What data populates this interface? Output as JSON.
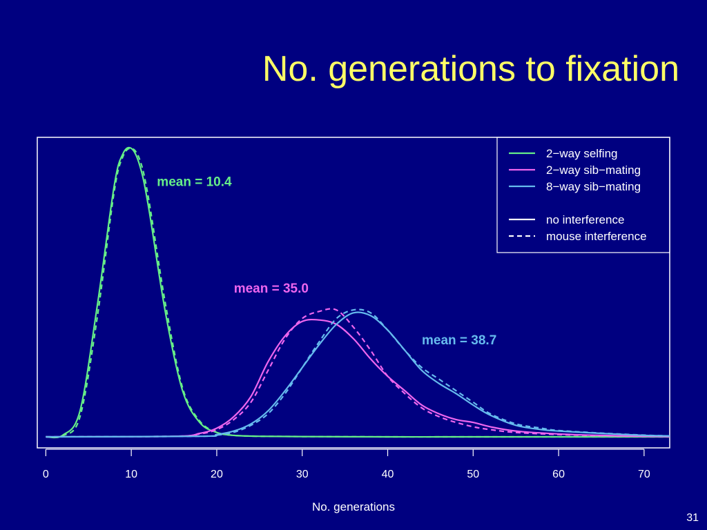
{
  "slide": {
    "title": "No. generations to fixation",
    "page_number": "31",
    "background": "#000080",
    "title_color": "#FFFF66"
  },
  "chart_data": {
    "type": "line",
    "title": "",
    "xlabel": "No. generations",
    "ylabel": "",
    "xlim": [
      -1,
      73
    ],
    "ylim": [
      0,
      1
    ],
    "x_ticks": [
      0,
      10,
      20,
      30,
      40,
      50,
      60,
      70
    ],
    "grid": false,
    "legend_position": "top-right",
    "legend": {
      "colors": [
        {
          "label": "2−way selfing",
          "color": "#66EE88"
        },
        {
          "label": "2−way sib−mating",
          "color": "#EE66EE"
        },
        {
          "label": "8−way sib−mating",
          "color": "#66BBEE"
        }
      ],
      "styles": [
        {
          "label": "no interference",
          "dash": "solid"
        },
        {
          "label": "mouse interference",
          "dash": "dashed"
        }
      ]
    },
    "series": [
      {
        "name": "2−way selfing",
        "style": "no interference",
        "color": "#66EE88",
        "dash": "solid",
        "x": [
          0,
          2,
          4,
          6,
          8,
          9,
          10,
          11,
          12,
          14,
          16,
          18,
          20,
          22,
          25,
          30,
          40,
          50,
          60,
          70,
          73
        ],
        "y": [
          0,
          0.006,
          0.09,
          0.45,
          0.87,
          0.98,
          1.0,
          0.94,
          0.8,
          0.43,
          0.16,
          0.05,
          0.015,
          0.005,
          0.002,
          0.001,
          0,
          0,
          0,
          0,
          0
        ]
      },
      {
        "name": "2−way selfing",
        "style": "mouse interference",
        "color": "#66EE88",
        "dash": "dashed",
        "x": [
          0,
          2,
          4,
          6,
          8,
          9,
          10,
          11,
          12,
          14,
          16,
          18,
          20,
          22,
          25,
          30,
          40,
          50,
          60,
          70,
          73
        ],
        "y": [
          0,
          0.004,
          0.07,
          0.41,
          0.85,
          0.97,
          1.0,
          0.96,
          0.83,
          0.46,
          0.17,
          0.055,
          0.016,
          0.005,
          0.002,
          0.001,
          0,
          0,
          0,
          0,
          0
        ]
      },
      {
        "name": "2−way sib−mating",
        "style": "no interference",
        "color": "#EE66EE",
        "dash": "solid",
        "x": [
          0,
          15,
          18,
          20,
          22,
          24,
          26,
          28,
          30,
          32,
          34,
          36,
          38,
          40,
          42,
          44,
          46,
          48,
          50,
          52,
          55,
          60,
          65,
          70,
          73
        ],
        "y": [
          0,
          0.002,
          0.012,
          0.03,
          0.07,
          0.14,
          0.26,
          0.35,
          0.4,
          0.405,
          0.39,
          0.34,
          0.27,
          0.21,
          0.16,
          0.11,
          0.08,
          0.06,
          0.05,
          0.035,
          0.02,
          0.01,
          0.005,
          0.002,
          0.001
        ]
      },
      {
        "name": "2−way sib−mating",
        "style": "mouse interference",
        "color": "#EE66EE",
        "dash": "dashed",
        "x": [
          0,
          15,
          18,
          20,
          22,
          24,
          26,
          28,
          30,
          32,
          34,
          36,
          38,
          40,
          42,
          44,
          46,
          48,
          50,
          52,
          55,
          60,
          65,
          70,
          73
        ],
        "y": [
          0,
          0.002,
          0.01,
          0.025,
          0.06,
          0.12,
          0.23,
          0.34,
          0.41,
          0.435,
          0.44,
          0.38,
          0.3,
          0.21,
          0.15,
          0.1,
          0.07,
          0.05,
          0.035,
          0.025,
          0.015,
          0.008,
          0.004,
          0.002,
          0.001
        ]
      },
      {
        "name": "8−way sib−mating",
        "style": "no interference",
        "color": "#66BBEE",
        "dash": "solid",
        "x": [
          0,
          18,
          20,
          22,
          24,
          26,
          28,
          30,
          32,
          34,
          36,
          38,
          40,
          42,
          44,
          46,
          48,
          50,
          52,
          55,
          58,
          60,
          65,
          70,
          73
        ],
        "y": [
          0,
          0.002,
          0.008,
          0.02,
          0.045,
          0.09,
          0.16,
          0.24,
          0.32,
          0.39,
          0.43,
          0.42,
          0.37,
          0.3,
          0.23,
          0.185,
          0.15,
          0.11,
          0.075,
          0.04,
          0.025,
          0.02,
          0.012,
          0.005,
          0.003
        ]
      },
      {
        "name": "8−way sib−mating",
        "style": "mouse interference",
        "color": "#66BBEE",
        "dash": "dashed",
        "x": [
          0,
          18,
          20,
          22,
          24,
          26,
          28,
          30,
          32,
          34,
          36,
          38,
          40,
          42,
          44,
          46,
          48,
          50,
          52,
          55,
          58,
          60,
          65,
          70,
          73
        ],
        "y": [
          0,
          0.002,
          0.006,
          0.016,
          0.04,
          0.08,
          0.15,
          0.24,
          0.33,
          0.41,
          0.44,
          0.43,
          0.37,
          0.3,
          0.24,
          0.2,
          0.16,
          0.12,
          0.08,
          0.045,
          0.03,
          0.022,
          0.013,
          0.006,
          0.003
        ]
      }
    ],
    "annotations": [
      {
        "text": "mean = 10.4",
        "color": "#66EE88",
        "x": 13,
        "y": 0.87
      },
      {
        "text": "mean = 35.0",
        "color": "#EE66EE",
        "x": 22,
        "y": 0.5
      },
      {
        "text": "mean = 38.7",
        "color": "#66BBEE",
        "x": 44,
        "y": 0.32
      }
    ]
  }
}
